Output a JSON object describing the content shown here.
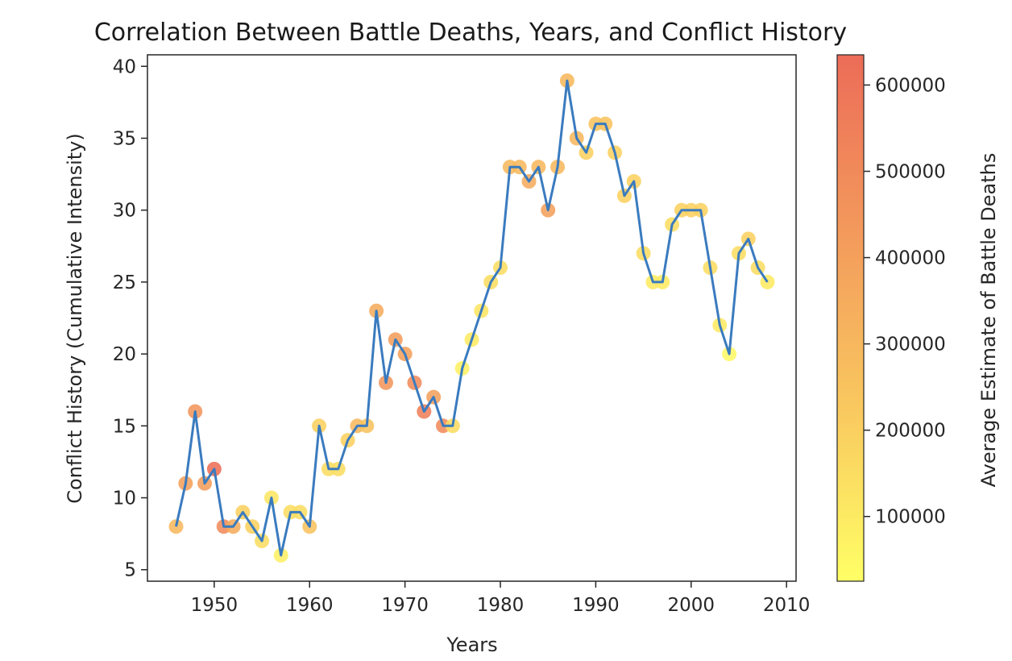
{
  "chart_data": {
    "type": "scatter",
    "title": "Correlation Between Battle Deaths, Years, and Conflict History",
    "xlabel": "Years",
    "ylabel": "Conflict History (Cumulative Intensity)",
    "colorbar_label": "Average Estimate of Battle Deaths",
    "xlim": [
      1943,
      2011
    ],
    "ylim": [
      4.2,
      40.8
    ],
    "xticks": [
      1950,
      1960,
      1970,
      1980,
      1990,
      2000,
      2010
    ],
    "yticks": [
      5,
      10,
      15,
      20,
      25,
      30,
      35,
      40
    ],
    "colorbar_range": [
      25000,
      635000
    ],
    "colorbar_ticks": [
      100000,
      200000,
      300000,
      400000,
      500000,
      600000
    ],
    "colormap": [
      "#ffff66",
      "#f9c85f",
      "#f39a5c",
      "#ec6c58"
    ],
    "line_color": "#3a7bbf",
    "grid": false,
    "series": [
      {
        "x": [
          1946,
          1947,
          1948,
          1949,
          1950,
          1951,
          1952,
          1953,
          1954,
          1955,
          1956,
          1957,
          1958,
          1959,
          1960,
          1961,
          1962,
          1963,
          1964,
          1965,
          1966,
          1967,
          1968,
          1969,
          1970,
          1971,
          1972,
          1973,
          1974,
          1975,
          1976,
          1977,
          1978,
          1979,
          1980,
          1981,
          1982,
          1983,
          1984,
          1985,
          1986,
          1987,
          1988,
          1989,
          1990,
          1991,
          1992,
          1993,
          1994,
          1995,
          1996,
          1997,
          1998,
          1999,
          2000,
          2001,
          2002,
          2003,
          2004,
          2005,
          2006,
          2007,
          2008
        ],
        "y": [
          8,
          11,
          16,
          11,
          12,
          8,
          8,
          9,
          8,
          7,
          10,
          6,
          9,
          9,
          8,
          15,
          12,
          12,
          14,
          15,
          15,
          23,
          18,
          21,
          20,
          18,
          16,
          17,
          15,
          15,
          19,
          21,
          23,
          25,
          26,
          33,
          33,
          32,
          33,
          30,
          33,
          39,
          35,
          34,
          36,
          36,
          34,
          31,
          32,
          27,
          25,
          25,
          29,
          30,
          30,
          30,
          26,
          22,
          20,
          27,
          28,
          26,
          25
        ],
        "color_values": [
          300000,
          400000,
          450000,
          420000,
          620000,
          500000,
          350000,
          200000,
          200000,
          150000,
          120000,
          80000,
          150000,
          150000,
          250000,
          200000,
          150000,
          150000,
          200000,
          300000,
          250000,
          350000,
          450000,
          420000,
          400000,
          500000,
          550000,
          400000,
          500000,
          150000,
          80000,
          100000,
          120000,
          150000,
          150000,
          300000,
          300000,
          350000,
          300000,
          400000,
          300000,
          300000,
          300000,
          200000,
          250000,
          250000,
          200000,
          200000,
          200000,
          150000,
          100000,
          100000,
          150000,
          200000,
          200000,
          200000,
          150000,
          100000,
          50000,
          150000,
          200000,
          150000,
          100000
        ]
      }
    ]
  }
}
